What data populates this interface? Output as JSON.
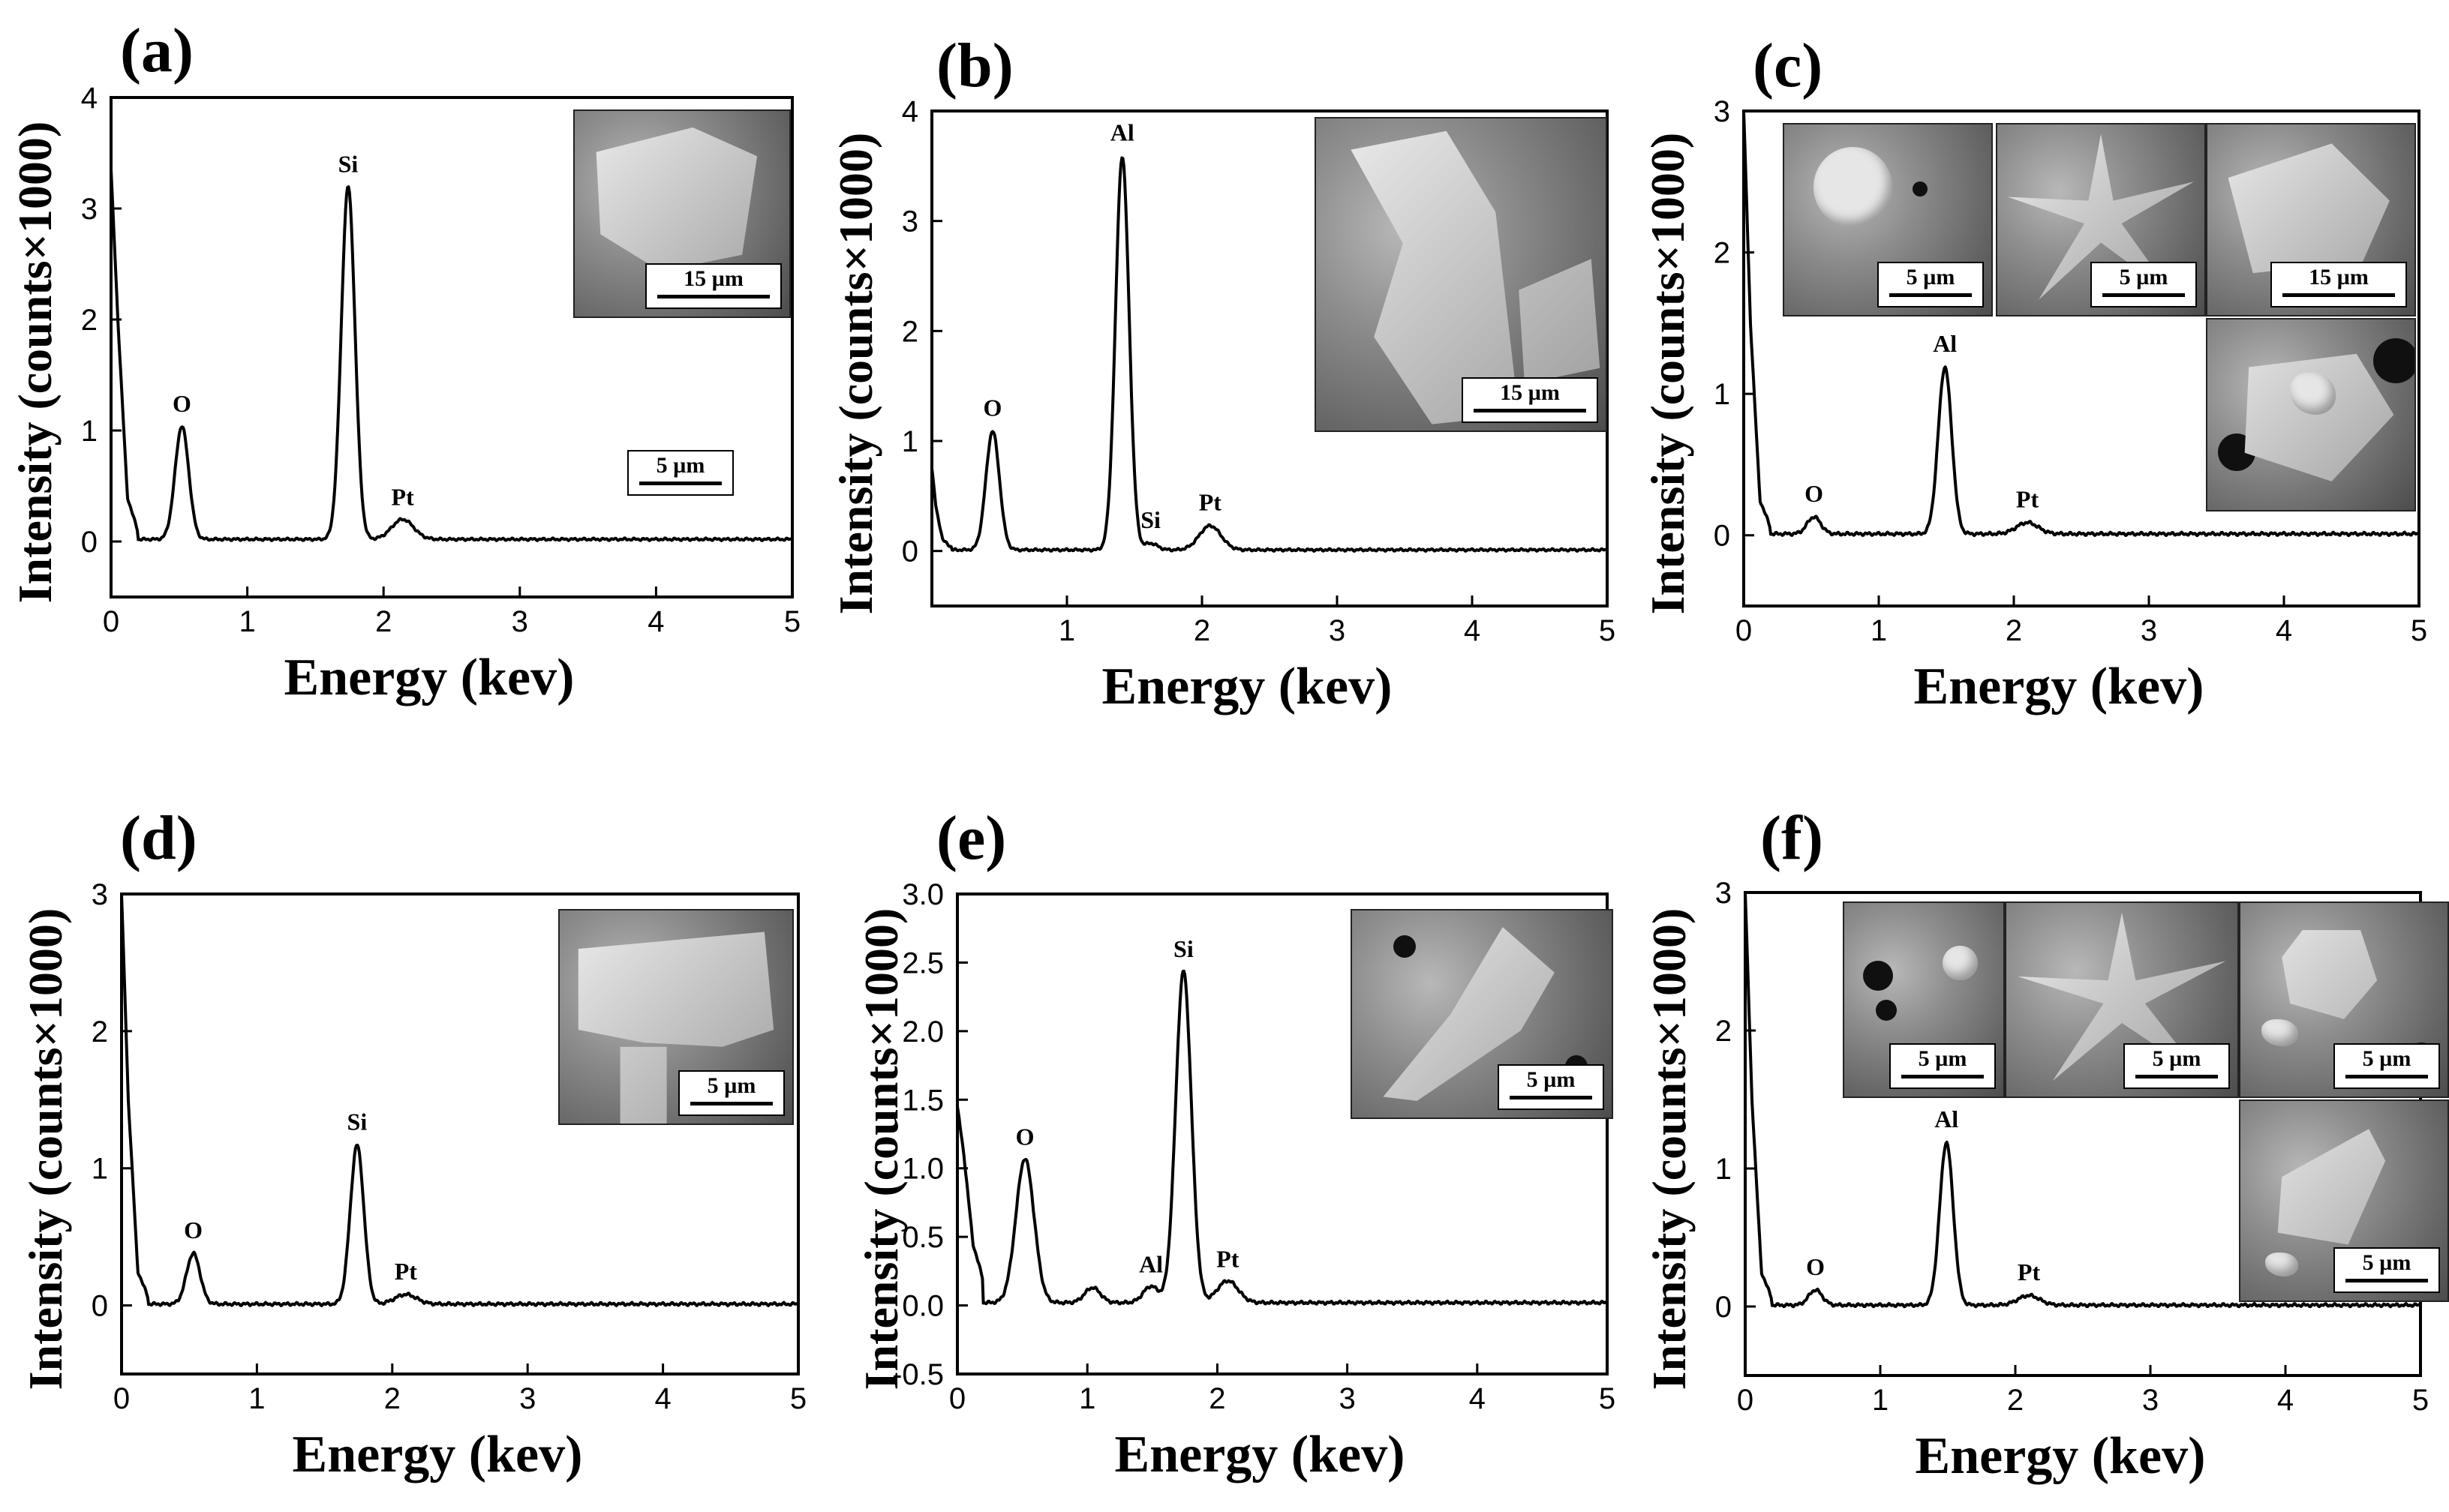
{
  "chart_data": [
    {
      "panel": "(a)",
      "type": "line",
      "title": "",
      "xlabel": "Energy (kev)",
      "ylabel": "Intensity (counts×1000)",
      "xlim": [
        0,
        5
      ],
      "ylim": [
        -0.5,
        4
      ],
      "xticks": [
        "0",
        "1",
        "2",
        "3",
        "4",
        "5"
      ],
      "yticks": [
        "0",
        "1",
        "2",
        "3",
        "4"
      ],
      "baseline": 0.02,
      "series": [
        {
          "name": "EDS spectrum",
          "x_start": [
            0,
            0.05,
            0.12,
            0.2
          ],
          "y_start": [
            3.35,
            2.0,
            0.4,
            0.08
          ]
        }
      ],
      "peaks": [
        {
          "label": "O",
          "x": 0.52,
          "y": 1.02,
          "width": 0.05
        },
        {
          "label": "Si",
          "x": 1.74,
          "y": 3.18,
          "width": 0.05
        },
        {
          "label": "Pt",
          "x": 2.14,
          "y": 0.18,
          "width": 0.08
        }
      ],
      "insets": [
        {
          "scale": "15 µm"
        }
      ],
      "extra_scale": "5 µm"
    },
    {
      "panel": "(b)",
      "type": "line",
      "title": "",
      "xlabel": "Energy (kev)",
      "ylabel": "Intensity (counts×1000)",
      "xlim": [
        0,
        5
      ],
      "ylim": [
        -0.5,
        4
      ],
      "xticks": [
        "1",
        "2",
        "3",
        "4",
        "5"
      ],
      "yticks": [
        "0",
        "1",
        "2",
        "3",
        "4"
      ],
      "baseline": 0.01,
      "series": [
        {
          "name": "EDS spectrum",
          "x_start": [
            0,
            0.03,
            0.08,
            0.15
          ],
          "y_start": [
            0.75,
            0.4,
            0.1,
            0.03
          ]
        }
      ],
      "peaks": [
        {
          "label": "O",
          "x": 0.45,
          "y": 1.08,
          "width": 0.05
        },
        {
          "label": "Al",
          "x": 1.41,
          "y": 3.58,
          "width": 0.05
        },
        {
          "label": "Si",
          "x": 1.62,
          "y": 0.06,
          "width": 0.05
        },
        {
          "label": "Pt",
          "x": 2.06,
          "y": 0.22,
          "width": 0.08
        }
      ],
      "insets": [
        {
          "scale": "15 µm"
        }
      ]
    },
    {
      "panel": "(c)",
      "type": "line",
      "title": "",
      "xlabel": "Energy (kev)",
      "ylabel": "Intensity (counts×1000)",
      "xlim": [
        0,
        5
      ],
      "ylim": [
        -0.5,
        3
      ],
      "xticks": [
        "0",
        "1",
        "2",
        "3",
        "4",
        "5"
      ],
      "yticks": [
        "0",
        "1",
        "2",
        "3"
      ],
      "baseline": 0.01,
      "series": [
        {
          "name": "EDS spectrum",
          "x_start": [
            0,
            0.05,
            0.12,
            0.2
          ],
          "y_start": [
            3.0,
            1.5,
            0.25,
            0.05
          ]
        }
      ],
      "peaks": [
        {
          "label": "O",
          "x": 0.52,
          "y": 0.12,
          "width": 0.05
        },
        {
          "label": "Al",
          "x": 1.49,
          "y": 1.18,
          "width": 0.05
        },
        {
          "label": "Pt",
          "x": 2.1,
          "y": 0.08,
          "width": 0.08
        }
      ],
      "insets": [
        {
          "scale": "5 µm"
        },
        {
          "scale": "5 µm"
        },
        {
          "scale": "15 µm"
        },
        {
          "scale": ""
        }
      ]
    },
    {
      "panel": "(d)",
      "type": "line",
      "title": "",
      "xlabel": "Energy (kev)",
      "ylabel": "Intensity (counts×1000)",
      "xlim": [
        0,
        5
      ],
      "ylim": [
        -0.5,
        3
      ],
      "xticks": [
        "0",
        "1",
        "2",
        "3",
        "4",
        "5"
      ],
      "yticks": [
        "0",
        "1",
        "2",
        "3"
      ],
      "baseline": 0.01,
      "series": [
        {
          "name": "EDS spectrum",
          "x_start": [
            0,
            0.05,
            0.12,
            0.2
          ],
          "y_start": [
            3.0,
            1.5,
            0.25,
            0.05
          ]
        }
      ],
      "peaks": [
        {
          "label": "O",
          "x": 0.53,
          "y": 0.37,
          "width": 0.05
        },
        {
          "label": "Si",
          "x": 1.74,
          "y": 1.16,
          "width": 0.05
        },
        {
          "label": "Pt",
          "x": 2.1,
          "y": 0.07,
          "width": 0.08
        }
      ],
      "insets": [
        {
          "scale": "5 µm"
        }
      ]
    },
    {
      "panel": "(e)",
      "type": "line",
      "title": "",
      "xlabel": "Energy (kev)",
      "ylabel": "Intensity (counts×1000)",
      "xlim": [
        0,
        5
      ],
      "ylim": [
        -0.5,
        3.0
      ],
      "xticks": [
        "0",
        "1",
        "2",
        "3",
        "4",
        "5"
      ],
      "yticks": [
        "-0.5",
        "0.0",
        "0.5",
        "1.0",
        "1.5",
        "2.0",
        "2.5",
        "3.0"
      ],
      "baseline": 0.02,
      "series": [
        {
          "name": "EDS spectrum",
          "x_start": [
            0,
            0.05,
            0.12,
            0.2
          ],
          "y_start": [
            1.45,
            1.1,
            0.45,
            0.18
          ]
        }
      ],
      "peaks": [
        {
          "label": "O",
          "x": 0.52,
          "y": 1.05,
          "width": 0.07
        },
        {
          "label": "",
          "x": 1.04,
          "y": 0.11,
          "width": 0.06
        },
        {
          "label": "Al",
          "x": 1.49,
          "y": 0.12,
          "width": 0.06
        },
        {
          "label": "Si",
          "x": 1.74,
          "y": 2.42,
          "width": 0.06
        },
        {
          "label": "Pt",
          "x": 2.08,
          "y": 0.16,
          "width": 0.08
        }
      ],
      "insets": [
        {
          "scale": "5 µm"
        }
      ]
    },
    {
      "panel": "(f)",
      "type": "line",
      "title": "",
      "xlabel": "Energy (kev)",
      "ylabel": "Intensity (counts×1000)",
      "xlim": [
        0,
        5
      ],
      "ylim": [
        -0.5,
        3
      ],
      "xticks": [
        "0",
        "1",
        "2",
        "3",
        "4",
        "5"
      ],
      "yticks": [
        "0",
        "1",
        "2",
        "3"
      ],
      "baseline": 0.01,
      "series": [
        {
          "name": "EDS spectrum",
          "x_start": [
            0,
            0.05,
            0.12,
            0.2
          ],
          "y_start": [
            3.0,
            1.5,
            0.25,
            0.05
          ]
        }
      ],
      "peaks": [
        {
          "label": "O",
          "x": 0.52,
          "y": 0.11,
          "width": 0.05
        },
        {
          "label": "Al",
          "x": 1.49,
          "y": 1.18,
          "width": 0.05
        },
        {
          "label": "Pt",
          "x": 2.1,
          "y": 0.07,
          "width": 0.08
        }
      ],
      "insets": [
        {
          "scale": "5 µm"
        },
        {
          "scale": "5 µm"
        },
        {
          "scale": "5 µm"
        },
        {
          "scale": "5 µm"
        }
      ]
    }
  ]
}
